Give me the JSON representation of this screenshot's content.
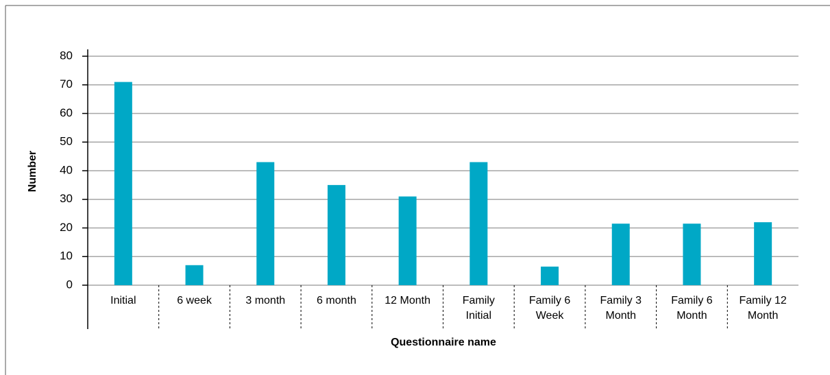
{
  "chart_data": {
    "type": "bar",
    "x_label": "Questionnaire name",
    "y_label": "Number",
    "categories": [
      "Initial",
      "6 week",
      "3 month",
      "6 month",
      "12 Month",
      "Family Initial",
      "Family 6 Week",
      "Family 3 Month",
      "Family 6 Month",
      "Family 12 Month"
    ],
    "values": [
      71,
      7,
      43,
      35,
      31,
      43,
      6.5,
      21.5,
      21.5,
      22
    ],
    "color": "#00a8c6",
    "ylim": [
      0,
      80
    ],
    "yticks": [
      0,
      10,
      20,
      30,
      40,
      50,
      60,
      70,
      80
    ],
    "grid": true
  }
}
